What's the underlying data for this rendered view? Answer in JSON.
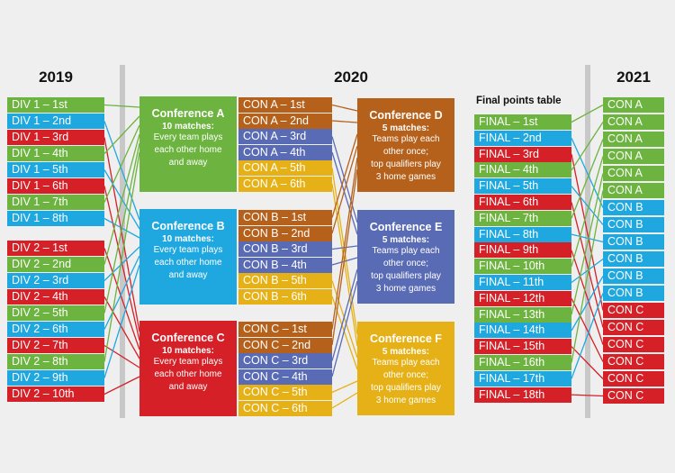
{
  "colors": {
    "green": "#6db33f",
    "blue": "#1fa8e0",
    "red": "#d42026",
    "orange": "#b5611c",
    "gold": "#e6b117",
    "purple": "#5a6bb5"
  },
  "years": {
    "y2019": "2019",
    "y2020": "2020",
    "y2021": "2021"
  },
  "final_table_title": "Final points table",
  "div1": [
    {
      "label": "DIV 1 – 1st",
      "color": "green"
    },
    {
      "label": "DIV 1 – 2nd",
      "color": "blue"
    },
    {
      "label": "DIV 1 – 3rd",
      "color": "red"
    },
    {
      "label": "DIV 1 – 4th",
      "color": "green"
    },
    {
      "label": "DIV 1 – 5th",
      "color": "blue"
    },
    {
      "label": "DIV 1 – 6th",
      "color": "red"
    },
    {
      "label": "DIV 1 – 7th",
      "color": "green"
    },
    {
      "label": "DIV 1 – 8th",
      "color": "blue"
    }
  ],
  "div2": [
    {
      "label": "DIV 2 – 1st",
      "color": "red"
    },
    {
      "label": "DIV 2 – 2nd",
      "color": "green"
    },
    {
      "label": "DIV 2 – 3rd",
      "color": "blue"
    },
    {
      "label": "DIV 2 – 4th",
      "color": "red"
    },
    {
      "label": "DIV 2 – 5th",
      "color": "green"
    },
    {
      "label": "DIV 2 – 6th",
      "color": "blue"
    },
    {
      "label": "DIV 2 – 7th",
      "color": "red"
    },
    {
      "label": "DIV 2 – 8th",
      "color": "green"
    },
    {
      "label": "DIV 2 – 9th",
      "color": "blue"
    },
    {
      "label": "DIV 2 – 10th",
      "color": "red"
    }
  ],
  "conferences_2020": [
    {
      "title": "Conference A",
      "sub": "10 matches:",
      "desc": [
        "Every team plays",
        "each other home",
        "and away"
      ],
      "color": "green"
    },
    {
      "title": "Conference B",
      "sub": "10 matches:",
      "desc": [
        "Every team plays",
        "each other home",
        "and away"
      ],
      "color": "blue"
    },
    {
      "title": "Conference C",
      "sub": "10 matches:",
      "desc": [
        "Every team plays",
        "each other home",
        "and away"
      ],
      "color": "red"
    }
  ],
  "con_positions": [
    [
      {
        "label": "CON A – 1st",
        "color": "orange"
      },
      {
        "label": "CON A – 2nd",
        "color": "orange"
      },
      {
        "label": "CON A – 3rd",
        "color": "purple"
      },
      {
        "label": "CON A – 4th",
        "color": "purple"
      },
      {
        "label": "CON A – 5th",
        "color": "gold"
      },
      {
        "label": "CON A – 6th",
        "color": "gold"
      }
    ],
    [
      {
        "label": "CON B – 1st",
        "color": "orange"
      },
      {
        "label": "CON B – 2nd",
        "color": "orange"
      },
      {
        "label": "CON B – 3rd",
        "color": "purple"
      },
      {
        "label": "CON B – 4th",
        "color": "purple"
      },
      {
        "label": "CON B – 5th",
        "color": "gold"
      },
      {
        "label": "CON B – 6th",
        "color": "gold"
      }
    ],
    [
      {
        "label": "CON C – 1st",
        "color": "orange"
      },
      {
        "label": "CON C – 2nd",
        "color": "orange"
      },
      {
        "label": "CON C – 3rd",
        "color": "purple"
      },
      {
        "label": "CON C – 4th",
        "color": "purple"
      },
      {
        "label": "CON C – 5th",
        "color": "gold"
      },
      {
        "label": "CON C – 6th",
        "color": "gold"
      }
    ]
  ],
  "conferences_def": [
    {
      "title": "Conference D",
      "sub": "5 matches:",
      "desc": [
        "Teams play each",
        "other once;",
        "top qualifiers play",
        "3 home games"
      ],
      "color": "orange"
    },
    {
      "title": "Conference E",
      "sub": "5 matches:",
      "desc": [
        "Teams play each",
        "other once;",
        "top qualifiers play",
        "3 home games"
      ],
      "color": "purple"
    },
    {
      "title": "Conference F",
      "sub": "5 matches:",
      "desc": [
        "Teams play each",
        "other once;",
        "top qualifiers play",
        "3 home games"
      ],
      "color": "gold"
    }
  ],
  "final_table": [
    {
      "label": "FINAL – 1st",
      "color": "green"
    },
    {
      "label": "FINAL – 2nd",
      "color": "blue"
    },
    {
      "label": "FINAL – 3rd",
      "color": "red"
    },
    {
      "label": "FINAL – 4th",
      "color": "green"
    },
    {
      "label": "FINAL – 5th",
      "color": "blue"
    },
    {
      "label": "FINAL – 6th",
      "color": "red"
    },
    {
      "label": "FINAL – 7th",
      "color": "green"
    },
    {
      "label": "FINAL – 8th",
      "color": "blue"
    },
    {
      "label": "FINAL – 9th",
      "color": "red"
    },
    {
      "label": "FINAL – 10th",
      "color": "green"
    },
    {
      "label": "FINAL – 11th",
      "color": "blue"
    },
    {
      "label": "FINAL – 12th",
      "color": "red"
    },
    {
      "label": "FINAL – 13th",
      "color": "green"
    },
    {
      "label": "FINAL – 14th",
      "color": "blue"
    },
    {
      "label": "FINAL – 15th",
      "color": "red"
    },
    {
      "label": "FINAL – 16th",
      "color": "green"
    },
    {
      "label": "FINAL – 17th",
      "color": "blue"
    },
    {
      "label": "FINAL – 18th",
      "color": "red"
    }
  ],
  "conf_2021": [
    {
      "label": "CON A",
      "color": "green"
    },
    {
      "label": "CON A",
      "color": "green"
    },
    {
      "label": "CON A",
      "color": "green"
    },
    {
      "label": "CON A",
      "color": "green"
    },
    {
      "label": "CON A",
      "color": "green"
    },
    {
      "label": "CON A",
      "color": "green"
    },
    {
      "label": "CON B",
      "color": "blue"
    },
    {
      "label": "CON B",
      "color": "blue"
    },
    {
      "label": "CON B",
      "color": "blue"
    },
    {
      "label": "CON B",
      "color": "blue"
    },
    {
      "label": "CON B",
      "color": "blue"
    },
    {
      "label": "CON B",
      "color": "blue"
    },
    {
      "label": "CON C",
      "color": "red"
    },
    {
      "label": "CON C",
      "color": "red"
    },
    {
      "label": "CON C",
      "color": "red"
    },
    {
      "label": "CON C",
      "color": "red"
    },
    {
      "label": "CON C",
      "color": "red"
    },
    {
      "label": "CON C",
      "color": "red"
    }
  ]
}
